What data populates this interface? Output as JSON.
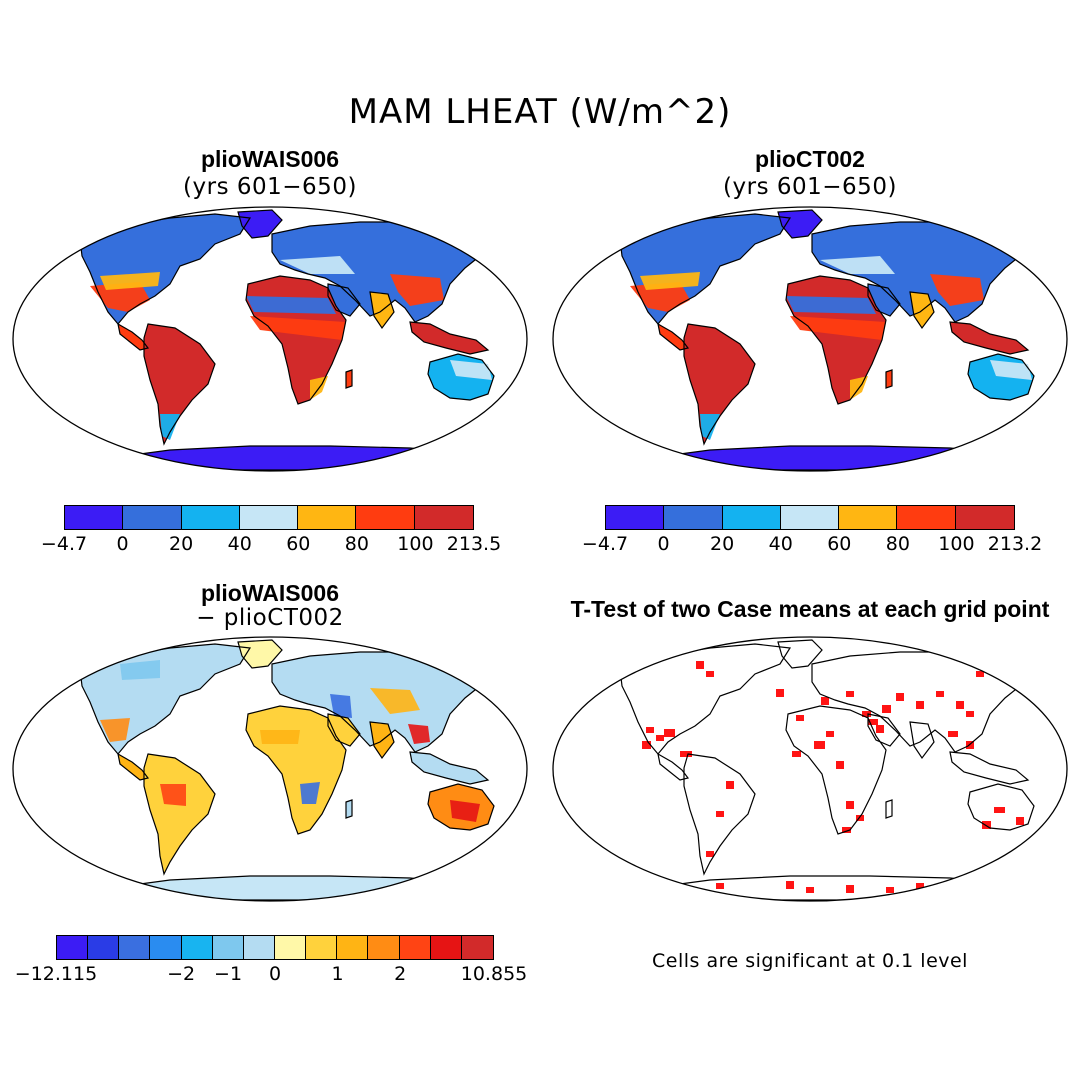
{
  "title": "MAM LHEAT (W/m^2)",
  "panels": [
    {
      "title": "plioWAIS006",
      "subtitle": "(yrs 601−650)",
      "style": "abs"
    },
    {
      "title": "plioCT002",
      "subtitle": "(yrs 601−650)",
      "style": "abs"
    },
    {
      "title": "plioWAIS006",
      "subtitle": "− plioCT002",
      "style": "diff"
    },
    {
      "title": "T-Test of two Case means at each grid point",
      "subtitle": "",
      "style": "ttest"
    }
  ],
  "colorbars": {
    "abs1": {
      "colors": [
        "#3c1cf5",
        "#356fdc",
        "#14b2f0",
        "#c6e6f6",
        "#ffb612",
        "#ff3c10",
        "#d22a2a"
      ],
      "labels": [
        "−4.7",
        "0",
        "20",
        "40",
        "60",
        "80",
        "100",
        "213.5"
      ]
    },
    "abs2": {
      "colors": [
        "#3c1cf5",
        "#356fdc",
        "#14b2f0",
        "#c6e6f6",
        "#ffb612",
        "#ff3c10",
        "#d22a2a"
      ],
      "labels": [
        "−4.7",
        "0",
        "20",
        "40",
        "60",
        "80",
        "100",
        "213.2"
      ]
    },
    "diff": {
      "colors": [
        "#3c1cf5",
        "#2a3ce6",
        "#3a6fe0",
        "#2a8cf0",
        "#18b4f0",
        "#7ec8ee",
        "#b4dcf2",
        "#fff8a8",
        "#ffd23c",
        "#ffb414",
        "#ff8c14",
        "#ff4414",
        "#e61414",
        "#d22a2a"
      ],
      "labels": [
        "−12.115",
        "−2",
        "−1",
        "0",
        "1",
        "2",
        "10.855"
      ]
    }
  },
  "note": "Cells are significant at 0.1 level"
}
